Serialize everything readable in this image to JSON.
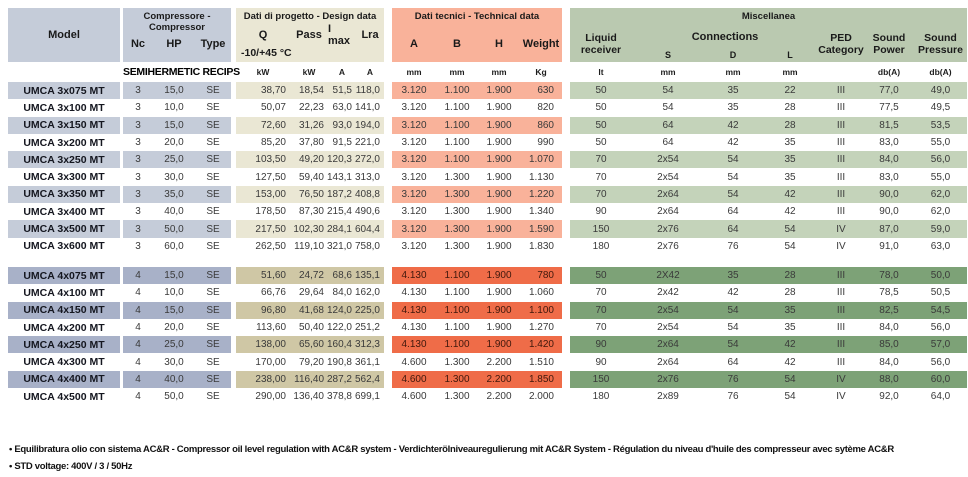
{
  "table": {
    "model_header": "Model",
    "groups": {
      "compressor": {
        "title": "Compressore - Compressor",
        "cols": [
          "Nc",
          "HP",
          "Type"
        ],
        "units_label": "SEMIHERMETIC RECIPS"
      },
      "design": {
        "title": "Dati di progetto - Design data",
        "cols": [
          "Q",
          "Pass",
          "I max",
          "Lra"
        ],
        "subnote": "-10/+45 °C",
        "units": [
          "kW",
          "kW",
          "A",
          "A"
        ]
      },
      "technical": {
        "title": "Dati tecnici - Technical data",
        "cols": [
          "A",
          "B",
          "H",
          "Weight"
        ],
        "units": [
          "mm",
          "mm",
          "mm",
          "Kg"
        ]
      },
      "miscellanea": {
        "title": "Miscellanea",
        "liquid_receiver": "Liquid receiver",
        "connections": "Connections",
        "conn_cols": [
          "S",
          "D",
          "L"
        ],
        "ped": "PED Category",
        "sound_power": "Sound Power",
        "sound_pressure": "Sound Pressure",
        "units": [
          "lt",
          "mm",
          "mm",
          "mm",
          "",
          "db(A)",
          "db(A)"
        ]
      }
    },
    "rows": [
      {
        "block": "a",
        "model": "UMCA 3x075 MT",
        "nc": "3",
        "hp": "15,0",
        "type": "SE",
        "q": "38,70",
        "pass": "18,54",
        "imax": "51,5",
        "lra": "118,0",
        "a": "3.120",
        "b": "1.100",
        "h": "1.900",
        "weight": "630",
        "lt": "50",
        "s": "54",
        "d": "35",
        "l": "22",
        "ped": "III",
        "pw": "77,0",
        "pr": "49,0"
      },
      {
        "block": "a",
        "model": "UMCA 3x100 MT",
        "nc": "3",
        "hp": "10,0",
        "type": "SE",
        "q": "50,07",
        "pass": "22,23",
        "imax": "63,0",
        "lra": "141,0",
        "a": "3.120",
        "b": "1.100",
        "h": "1.900",
        "weight": "820",
        "lt": "50",
        "s": "54",
        "d": "35",
        "l": "28",
        "ped": "III",
        "pw": "77,5",
        "pr": "49,5"
      },
      {
        "block": "a",
        "model": "UMCA 3x150 MT",
        "nc": "3",
        "hp": "15,0",
        "type": "SE",
        "q": "72,60",
        "pass": "31,26",
        "imax": "93,0",
        "lra": "194,0",
        "a": "3.120",
        "b": "1.100",
        "h": "1.900",
        "weight": "860",
        "lt": "50",
        "s": "64",
        "d": "42",
        "l": "28",
        "ped": "III",
        "pw": "81,5",
        "pr": "53,5"
      },
      {
        "block": "a",
        "model": "UMCA 3x200 MT",
        "nc": "3",
        "hp": "20,0",
        "type": "SE",
        "q": "85,20",
        "pass": "37,80",
        "imax": "91,5",
        "lra": "221,0",
        "a": "3.120",
        "b": "1.100",
        "h": "1.900",
        "weight": "990",
        "lt": "50",
        "s": "64",
        "d": "42",
        "l": "35",
        "ped": "III",
        "pw": "83,0",
        "pr": "55,0"
      },
      {
        "block": "a",
        "model": "UMCA 3x250 MT",
        "nc": "3",
        "hp": "25,0",
        "type": "SE",
        "q": "103,50",
        "pass": "49,20",
        "imax": "120,3",
        "lra": "272,0",
        "a": "3.120",
        "b": "1.100",
        "h": "1.900",
        "weight": "1.070",
        "lt": "70",
        "s": "2x54",
        "d": "54",
        "l": "35",
        "ped": "III",
        "pw": "84,0",
        "pr": "56,0"
      },
      {
        "block": "a",
        "model": "UMCA 3x300 MT",
        "nc": "3",
        "hp": "30,0",
        "type": "SE",
        "q": "127,50",
        "pass": "59,40",
        "imax": "143,1",
        "lra": "313,0",
        "a": "3.120",
        "b": "1.300",
        "h": "1.900",
        "weight": "1.130",
        "lt": "70",
        "s": "2x54",
        "d": "54",
        "l": "35",
        "ped": "III",
        "pw": "83,0",
        "pr": "55,0"
      },
      {
        "block": "a",
        "model": "UMCA 3x350 MT",
        "nc": "3",
        "hp": "35,0",
        "type": "SE",
        "q": "153,00",
        "pass": "76,50",
        "imax": "187,2",
        "lra": "408,8",
        "a": "3.120",
        "b": "1.300",
        "h": "1.900",
        "weight": "1.220",
        "lt": "70",
        "s": "2x64",
        "d": "54",
        "l": "42",
        "ped": "III",
        "pw": "90,0",
        "pr": "62,0"
      },
      {
        "block": "a",
        "model": "UMCA 3x400 MT",
        "nc": "3",
        "hp": "40,0",
        "type": "SE",
        "q": "178,50",
        "pass": "87,30",
        "imax": "215,4",
        "lra": "490,6",
        "a": "3.120",
        "b": "1.300",
        "h": "1.900",
        "weight": "1.340",
        "lt": "90",
        "s": "2x64",
        "d": "64",
        "l": "42",
        "ped": "III",
        "pw": "90,0",
        "pr": "62,0"
      },
      {
        "block": "a",
        "model": "UMCA 3x500 MT",
        "nc": "3",
        "hp": "50,0",
        "type": "SE",
        "q": "217,50",
        "pass": "102,30",
        "imax": "284,1",
        "lra": "604,4",
        "a": "3.120",
        "b": "1.300",
        "h": "1.900",
        "weight": "1.590",
        "lt": "150",
        "s": "2x76",
        "d": "64",
        "l": "54",
        "ped": "IV",
        "pw": "87,0",
        "pr": "59,0"
      },
      {
        "block": "a",
        "model": "UMCA 3x600 MT",
        "nc": "3",
        "hp": "60,0",
        "type": "SE",
        "q": "262,50",
        "pass": "119,10",
        "imax": "321,0",
        "lra": "758,0",
        "a": "3.120",
        "b": "1.300",
        "h": "1.900",
        "weight": "1.830",
        "lt": "180",
        "s": "2x76",
        "d": "76",
        "l": "54",
        "ped": "IV",
        "pw": "91,0",
        "pr": "63,0"
      },
      {
        "block": "b",
        "model": "UMCA 4x075 MT",
        "nc": "4",
        "hp": "15,0",
        "type": "SE",
        "q": "51,60",
        "pass": "24,72",
        "imax": "68,6",
        "lra": "135,1",
        "a": "4.130",
        "b": "1.100",
        "h": "1.900",
        "weight": "780",
        "lt": "50",
        "s": "2X42",
        "d": "35",
        "l": "28",
        "ped": "III",
        "pw": "78,0",
        "pr": "50,0"
      },
      {
        "block": "b",
        "model": "UMCA 4x100 MT",
        "nc": "4",
        "hp": "10,0",
        "type": "SE",
        "q": "66,76",
        "pass": "29,64",
        "imax": "84,0",
        "lra": "162,0",
        "a": "4.130",
        "b": "1.100",
        "h": "1.900",
        "weight": "1.060",
        "lt": "70",
        "s": "2x42",
        "d": "42",
        "l": "28",
        "ped": "III",
        "pw": "78,5",
        "pr": "50,5"
      },
      {
        "block": "b",
        "model": "UMCA 4x150 MT",
        "nc": "4",
        "hp": "15,0",
        "type": "SE",
        "q": "96,80",
        "pass": "41,68",
        "imax": "124,0",
        "lra": "225,0",
        "a": "4.130",
        "b": "1.100",
        "h": "1.900",
        "weight": "1.100",
        "lt": "70",
        "s": "2x54",
        "d": "54",
        "l": "35",
        "ped": "III",
        "pw": "82,5",
        "pr": "54,5"
      },
      {
        "block": "b",
        "model": "UMCA 4x200 MT",
        "nc": "4",
        "hp": "20,0",
        "type": "SE",
        "q": "113,60",
        "pass": "50,40",
        "imax": "122,0",
        "lra": "251,2",
        "a": "4.130",
        "b": "1.100",
        "h": "1.900",
        "weight": "1.270",
        "lt": "70",
        "s": "2x54",
        "d": "54",
        "l": "35",
        "ped": "III",
        "pw": "84,0",
        "pr": "56,0"
      },
      {
        "block": "b",
        "model": "UMCA 4x250 MT",
        "nc": "4",
        "hp": "25,0",
        "type": "SE",
        "q": "138,00",
        "pass": "65,60",
        "imax": "160,4",
        "lra": "312,3",
        "a": "4.130",
        "b": "1.100",
        "h": "1.900",
        "weight": "1.420",
        "lt": "90",
        "s": "2x64",
        "d": "54",
        "l": "42",
        "ped": "III",
        "pw": "85,0",
        "pr": "57,0"
      },
      {
        "block": "b",
        "model": "UMCA 4x300 MT",
        "nc": "4",
        "hp": "30,0",
        "type": "SE",
        "q": "170,00",
        "pass": "79,20",
        "imax": "190,8",
        "lra": "361,1",
        "a": "4.600",
        "b": "1.300",
        "h": "2.200",
        "weight": "1.510",
        "lt": "90",
        "s": "2x64",
        "d": "64",
        "l": "42",
        "ped": "III",
        "pw": "84,0",
        "pr": "56,0"
      },
      {
        "block": "b",
        "model": "UMCA 4x400 MT",
        "nc": "4",
        "hp": "40,0",
        "type": "SE",
        "q": "238,00",
        "pass": "116,40",
        "imax": "287,2",
        "lra": "562,4",
        "a": "4.600",
        "b": "1.300",
        "h": "2.200",
        "weight": "1.850",
        "lt": "150",
        "s": "2x76",
        "d": "76",
        "l": "54",
        "ped": "IV",
        "pw": "88,0",
        "pr": "60,0"
      },
      {
        "block": "b",
        "model": "UMCA 4x500 MT",
        "nc": "4",
        "hp": "50,0",
        "type": "SE",
        "q": "290,00",
        "pass": "136,40",
        "imax": "378,8",
        "lra": "699,1",
        "a": "4.600",
        "b": "1.300",
        "h": "2.200",
        "weight": "2.000",
        "lt": "180",
        "s": "2x89",
        "d": "76",
        "l": "54",
        "ped": "IV",
        "pw": "92,0",
        "pr": "64,0"
      }
    ]
  },
  "notes": [
    "• Equilibratura olio con sistema AC&R - Compressor oil level regulation with AC&R system - Verdichterölniveauregulierung mit AC&R System - Régulation du niveau d'huile des compresseur avec sytème AC&R",
    "• STD voltage: 400V / 3 / 50Hz"
  ],
  "colors": {
    "header_blue": "#c5ccd9",
    "header_cream": "#eae7d4",
    "header_salmon": "#f9b29a",
    "header_green": "#bac9b0",
    "row_blue_light": "#c5ccd9",
    "row_blue_dark": "#a8b1c8",
    "row_cream": "#eae7d4",
    "row_tan": "#cfc7a5",
    "row_salmon": "#f9b29a",
    "row_orange": "#ef6c48",
    "row_green_light": "#c4d3ba",
    "row_green_dark": "#7da277"
  }
}
